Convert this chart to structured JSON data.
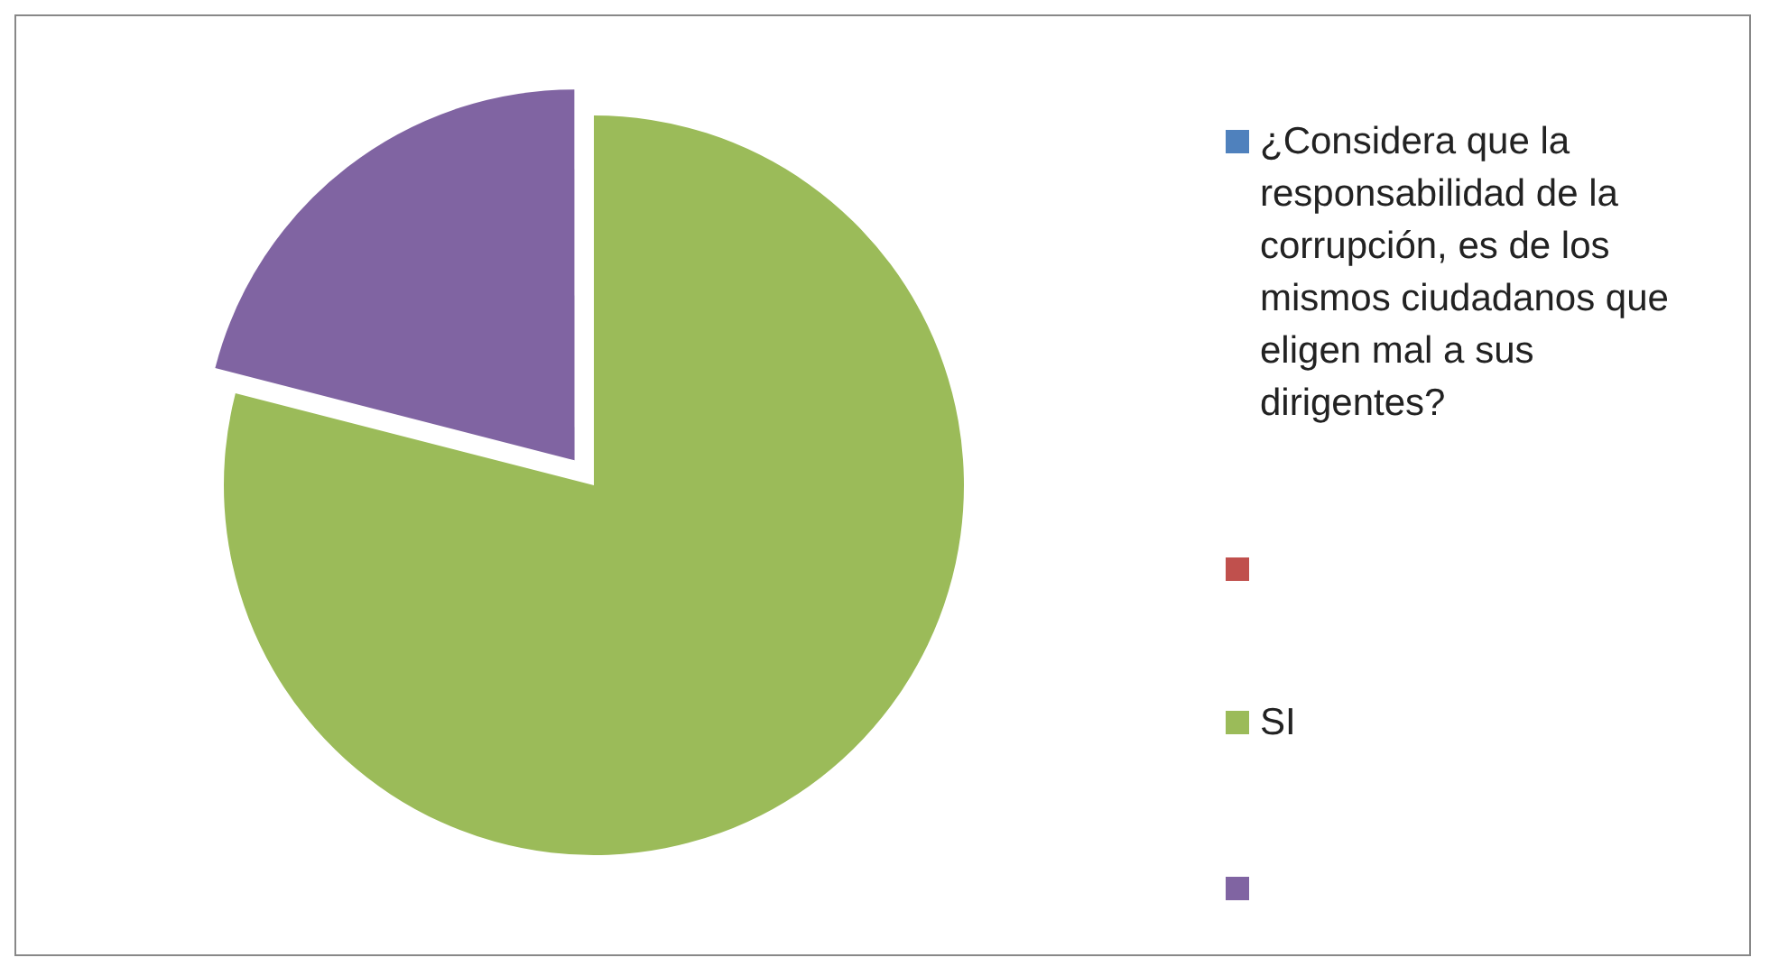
{
  "chart_data": {
    "type": "pie",
    "categories": [
      "¿Considera que la responsabilidad de la corrupción, es de los mismos ciudadanos que eligen mal a sus dirigentes?",
      null,
      "SI",
      null
    ],
    "values": [
      0,
      0,
      79,
      21
    ],
    "colors": [
      "#4f81bd",
      "#c0504d",
      "#9bbb59",
      "#8064a2"
    ],
    "legend": "right"
  }
}
